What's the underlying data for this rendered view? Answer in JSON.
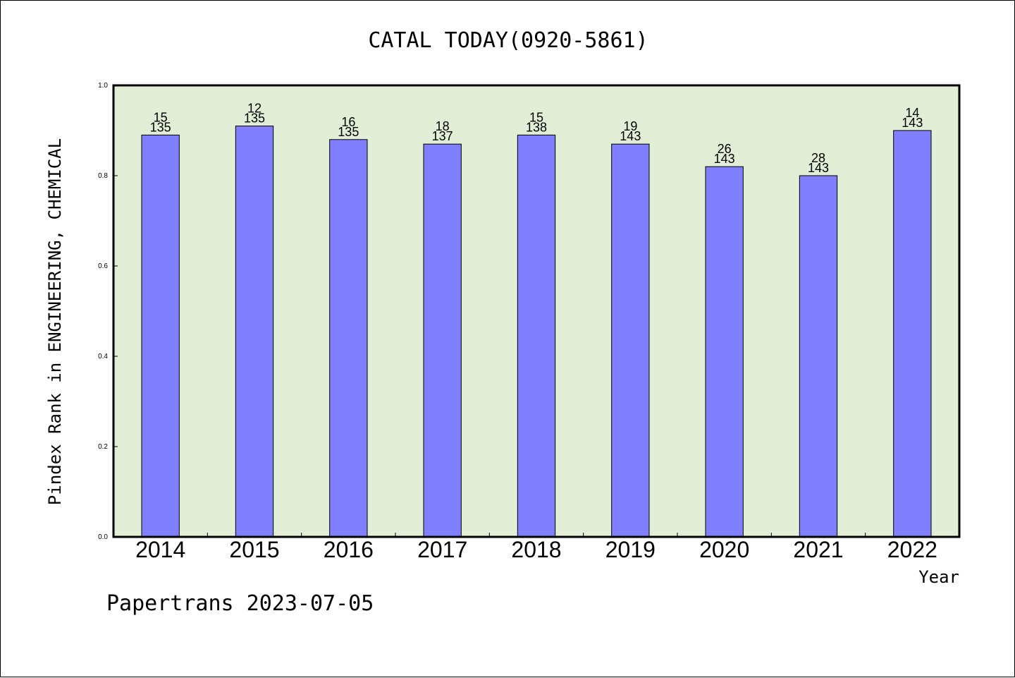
{
  "colors": {
    "plot_background": "#e2efd6",
    "bar_fill": "#8080ff",
    "bar_stroke": "#000000",
    "axis": "#000000",
    "text": "#000000"
  },
  "footer": {
    "note": "Papertrans 2023-07-05"
  },
  "chart_data": {
    "type": "bar",
    "title": "CATAL TODAY(0920-5861)",
    "xlabel": "Year",
    "ylabel": "Pindex Rank in ENGINEERING, CHEMICAL",
    "ylim": [
      0,
      1.0
    ],
    "yticks": [
      "0.0",
      "0.2",
      "0.4",
      "0.6",
      "0.8",
      "1.0"
    ],
    "grid": false,
    "categories": [
      "2014",
      "2015",
      "2016",
      "2017",
      "2018",
      "2019",
      "2020",
      "2021",
      "2022"
    ],
    "values": [
      0.89,
      0.91,
      0.88,
      0.87,
      0.89,
      0.87,
      0.82,
      0.8,
      0.9
    ],
    "rank": [
      "15",
      "12",
      "16",
      "18",
      "15",
      "19",
      "26",
      "28",
      "14"
    ],
    "total": [
      "135",
      "135",
      "135",
      "137",
      "138",
      "143",
      "143",
      "143",
      "143"
    ]
  }
}
